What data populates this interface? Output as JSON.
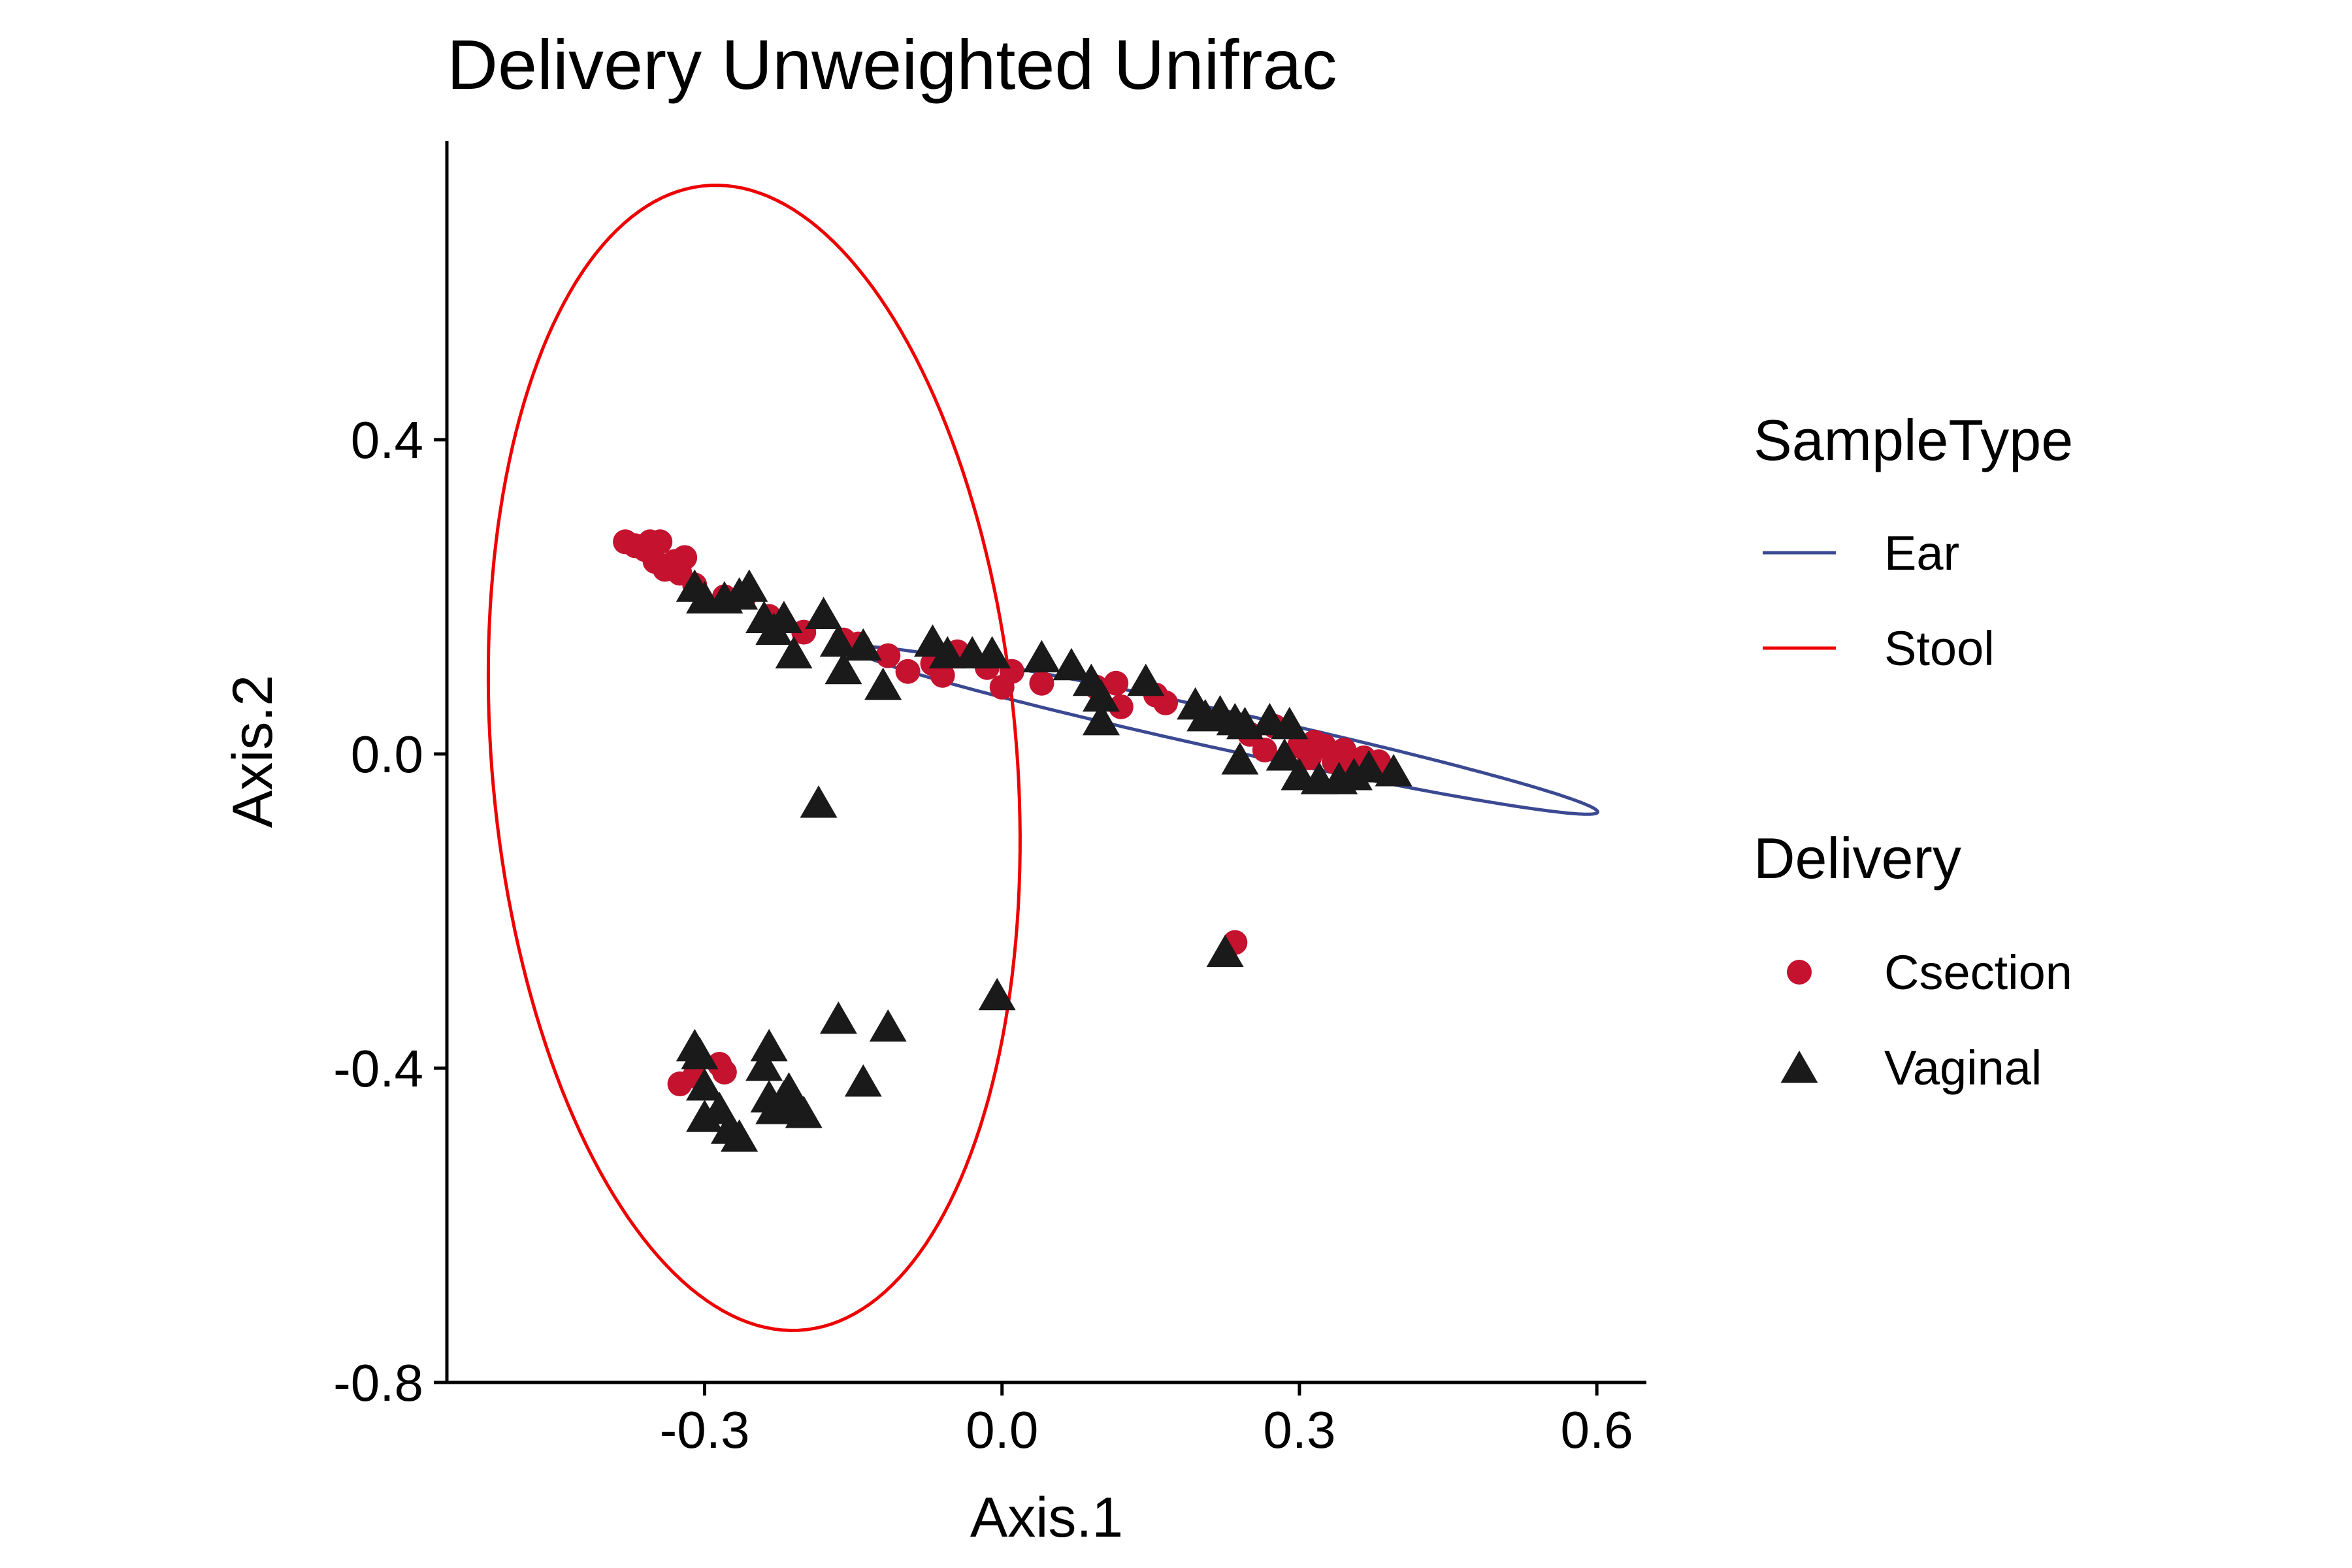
{
  "chart_data": {
    "type": "scatter",
    "title": "Delivery Unweighted Unifrac",
    "xlabel": "Axis.1",
    "ylabel": "Axis.2",
    "xlim": [
      -0.56,
      0.65
    ],
    "ylim": [
      -0.8,
      0.78
    ],
    "x_ticks": [
      -0.3,
      0.0,
      0.3,
      0.6
    ],
    "x_tick_labels": [
      "-0.3",
      "0.0",
      "0.3",
      "0.6"
    ],
    "y_ticks": [
      -0.8,
      -0.4,
      0.0,
      0.4
    ],
    "y_tick_labels": [
      "-0.8",
      "-0.4",
      "0.0",
      "0.4"
    ],
    "grid": false,
    "legend_position": "right",
    "legends": [
      {
        "title": "SampleType",
        "kind": "line",
        "entries": [
          {
            "label": "Ear",
            "color": "#3B4992"
          },
          {
            "label": "Stool",
            "color": "#EE0000"
          }
        ]
      },
      {
        "title": "Delivery",
        "kind": "shape",
        "entries": [
          {
            "label": "Csection",
            "shape": "circle",
            "color": "#C4122F"
          },
          {
            "label": "Vaginal",
            "shape": "triangle",
            "color": "#1A1A1A"
          }
        ]
      }
    ],
    "ellipses": [
      {
        "group": "Ear",
        "color": "#3B4992",
        "center": [
          0.225,
          0.03
        ],
        "semi_major": 0.39,
        "semi_minor": 0.024,
        "angle_deg": -15.5
      },
      {
        "group": "Stool",
        "color": "#EE0000",
        "center": [
          -0.25,
          -0.005
        ],
        "semi_major": 0.73,
        "semi_minor": 0.265,
        "angle_deg": 93.5
      }
    ],
    "series": [
      {
        "group": "Csection",
        "shape": "circle",
        "color": "#C4122F",
        "points": [
          [
            -0.38,
            0.27
          ],
          [
            -0.37,
            0.265
          ],
          [
            -0.36,
            0.26
          ],
          [
            -0.355,
            0.27
          ],
          [
            -0.345,
            0.27
          ],
          [
            -0.35,
            0.245
          ],
          [
            -0.34,
            0.235
          ],
          [
            -0.33,
            0.245
          ],
          [
            -0.325,
            0.23
          ],
          [
            -0.32,
            0.25
          ],
          [
            -0.31,
            0.215
          ],
          [
            -0.28,
            0.2
          ],
          [
            -0.26,
            0.2
          ],
          [
            -0.235,
            0.175
          ],
          [
            -0.2,
            0.155
          ],
          [
            -0.16,
            0.145
          ],
          [
            -0.145,
            0.14
          ],
          [
            -0.115,
            0.125
          ],
          [
            -0.095,
            0.105
          ],
          [
            -0.07,
            0.115
          ],
          [
            -0.06,
            0.1
          ],
          [
            -0.045,
            0.13
          ],
          [
            -0.015,
            0.11
          ],
          [
            0.0,
            0.085
          ],
          [
            0.01,
            0.105
          ],
          [
            0.04,
            0.09
          ],
          [
            0.095,
            0.085
          ],
          [
            0.115,
            0.09
          ],
          [
            0.12,
            0.06
          ],
          [
            0.155,
            0.075
          ],
          [
            0.165,
            0.065
          ],
          [
            0.25,
            0.025
          ],
          [
            0.265,
            0.005
          ],
          [
            0.275,
            0.035
          ],
          [
            0.3,
            0.01
          ],
          [
            0.31,
            -0.005
          ],
          [
            0.315,
            0.015
          ],
          [
            0.325,
            0.01
          ],
          [
            0.335,
            -0.01
          ],
          [
            0.345,
            0.005
          ],
          [
            0.355,
            -0.015
          ],
          [
            0.365,
            -0.005
          ],
          [
            0.38,
            -0.01
          ],
          [
            0.385,
            -0.02
          ],
          [
            0.235,
            -0.24
          ],
          [
            -0.325,
            -0.42
          ],
          [
            -0.31,
            -0.41
          ],
          [
            -0.285,
            -0.395
          ],
          [
            -0.28,
            -0.405
          ]
        ]
      },
      {
        "group": "Vaginal",
        "shape": "triangle",
        "color": "#1A1A1A",
        "points": [
          [
            -0.31,
            0.21
          ],
          [
            -0.3,
            0.195
          ],
          [
            -0.28,
            0.195
          ],
          [
            -0.265,
            0.2
          ],
          [
            -0.255,
            0.21
          ],
          [
            -0.24,
            0.17
          ],
          [
            -0.23,
            0.155
          ],
          [
            -0.22,
            0.17
          ],
          [
            -0.21,
            0.125
          ],
          [
            -0.18,
            0.175
          ],
          [
            -0.165,
            0.14
          ],
          [
            -0.16,
            0.105
          ],
          [
            -0.14,
            0.135
          ],
          [
            -0.12,
            0.085
          ],
          [
            -0.07,
            0.14
          ],
          [
            -0.055,
            0.125
          ],
          [
            -0.03,
            0.125
          ],
          [
            -0.01,
            0.125
          ],
          [
            0.04,
            0.12
          ],
          [
            0.07,
            0.11
          ],
          [
            0.09,
            0.09
          ],
          [
            0.1,
            0.07
          ],
          [
            0.1,
            0.04
          ],
          [
            0.145,
            0.09
          ],
          [
            0.195,
            0.06
          ],
          [
            0.205,
            0.045
          ],
          [
            0.22,
            0.05
          ],
          [
            0.235,
            0.04
          ],
          [
            0.245,
            0.035
          ],
          [
            0.27,
            0.04
          ],
          [
            0.29,
            0.035
          ],
          [
            0.24,
            -0.01
          ],
          [
            0.285,
            -0.005
          ],
          [
            0.3,
            -0.03
          ],
          [
            0.32,
            -0.035
          ],
          [
            0.34,
            -0.035
          ],
          [
            0.355,
            -0.03
          ],
          [
            0.37,
            -0.02
          ],
          [
            0.395,
            -0.025
          ],
          [
            -0.185,
            -0.065
          ],
          [
            -0.005,
            -0.31
          ],
          [
            0.225,
            -0.255
          ],
          [
            -0.165,
            -0.34
          ],
          [
            -0.115,
            -0.35
          ],
          [
            -0.14,
            -0.42
          ],
          [
            -0.31,
            -0.375
          ],
          [
            -0.305,
            -0.385
          ],
          [
            -0.3,
            -0.425
          ],
          [
            -0.3,
            -0.465
          ],
          [
            -0.285,
            -0.455
          ],
          [
            -0.275,
            -0.48
          ],
          [
            -0.265,
            -0.49
          ],
          [
            -0.235,
            -0.375
          ],
          [
            -0.24,
            -0.4
          ],
          [
            -0.235,
            -0.44
          ],
          [
            -0.23,
            -0.455
          ],
          [
            -0.22,
            -0.44
          ],
          [
            -0.215,
            -0.43
          ],
          [
            -0.21,
            -0.45
          ],
          [
            -0.2,
            -0.46
          ]
        ]
      }
    ]
  }
}
